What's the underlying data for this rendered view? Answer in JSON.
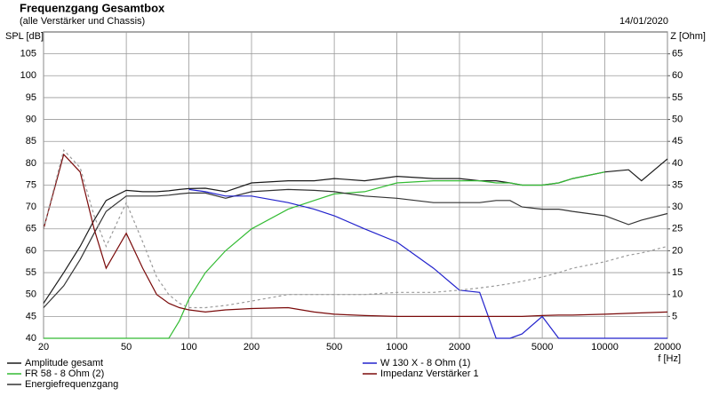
{
  "chart_data": {
    "type": "line",
    "title": "Frequenzgang Gesamtbox",
    "subtitle": "(alle Verstärker und Chassis)",
    "date": "14/01/2020",
    "y_label": "SPL [dB]",
    "y2_label": "Z [Ohm]",
    "x_label": "f [Hz]",
    "log_x": true,
    "grid": true,
    "x": [
      20,
      25,
      30,
      35,
      40,
      50,
      60,
      70,
      80,
      90,
      100,
      120,
      150,
      200,
      300,
      400,
      500,
      700,
      1000,
      1500,
      2000,
      2500,
      3000,
      3500,
      4000,
      5000,
      6000,
      7000,
      10000,
      13000,
      15000,
      20000
    ],
    "xlim": [
      20,
      20000
    ],
    "xticks": [
      20,
      50,
      100,
      200,
      500,
      1000,
      2000,
      5000,
      10000,
      20000
    ],
    "ylim": [
      40,
      110
    ],
    "yticks": [
      40,
      45,
      50,
      55,
      60,
      65,
      70,
      75,
      80,
      85,
      90,
      95,
      100,
      105
    ],
    "y2lim": [
      0,
      70
    ],
    "y2ticks": [
      5,
      10,
      15,
      20,
      25,
      30,
      35,
      40,
      45,
      50,
      55,
      60,
      65
    ],
    "series": [
      {
        "name": "Amplitude gesamt",
        "color": "#1a1a1a",
        "values": [
          48,
          55,
          61,
          67,
          71.5,
          73.8,
          73.5,
          73.5,
          73.7,
          74,
          74.2,
          74.3,
          73.5,
          75.5,
          76,
          76,
          76.5,
          76,
          77,
          76.5,
          76.5,
          76,
          76,
          75.5,
          75,
          75,
          75.5,
          76.5,
          78,
          78.5,
          76,
          81
        ]
      },
      {
        "name": "FR 58 - 8 Ohm (2)",
        "color": "#33bb33",
        "values": [
          40,
          40,
          40,
          40,
          40,
          40,
          40,
          40,
          40,
          44,
          49,
          55,
          60,
          65,
          69.5,
          71.5,
          73,
          73.5,
          75.5,
          76,
          76,
          76,
          75.5,
          75.5,
          75,
          75,
          75.5,
          76.5,
          78,
          null,
          null,
          null
        ]
      },
      {
        "name": "Energiefrequenzgang",
        "color": "#333333",
        "values": [
          47,
          52,
          58,
          64,
          69,
          72.5,
          72.5,
          72.5,
          72.7,
          73,
          73.2,
          73.2,
          72,
          73.5,
          74,
          73.8,
          73.5,
          72.5,
          72,
          71,
          71,
          71,
          71.5,
          71.5,
          70,
          69.5,
          69.5,
          69,
          68,
          66,
          67,
          68.5
        ]
      },
      {
        "name": "W 130 X - 8 Ohm (1)",
        "color": "#2222cc",
        "values": [
          null,
          null,
          null,
          null,
          null,
          null,
          null,
          null,
          null,
          null,
          74,
          73.5,
          72.5,
          72.5,
          71,
          69.5,
          68,
          65,
          62,
          56,
          51,
          50.5,
          40,
          40,
          41,
          45,
          40,
          40,
          40,
          40,
          40,
          40
        ]
      },
      {
        "name": "Impedanz Verstärker 1",
        "color": "#7a0a0a",
        "axis": "y2",
        "values": [
          25,
          42,
          38,
          25,
          16,
          24,
          16,
          10,
          8,
          7,
          6.5,
          6,
          6.5,
          6.8,
          7,
          6,
          5.5,
          5.2,
          5,
          5,
          5,
          5,
          5,
          5,
          5,
          5.2,
          5.3,
          5.3,
          5.5,
          5.7,
          5.8,
          6
        ]
      },
      {
        "color": "#999999",
        "axis": "y2",
        "dashed": true,
        "values": [
          25,
          43,
          39,
          28,
          21,
          31,
          22,
          14,
          10,
          8,
          7,
          7,
          7.5,
          8.5,
          10,
          10,
          10,
          10,
          10.5,
          10.5,
          11,
          11.5,
          12,
          12.5,
          13,
          14,
          15,
          16,
          17.5,
          19,
          19.5,
          21
        ]
      }
    ]
  }
}
